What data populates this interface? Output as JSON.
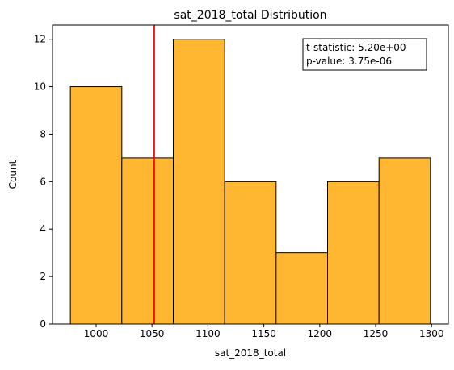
{
  "chart_data": {
    "type": "bar",
    "title": "sat_2018_total Distribution",
    "xlabel": "sat_2018_total",
    "ylabel": "Count",
    "bins": [
      {
        "start": 977,
        "end": 1023,
        "count": 10
      },
      {
        "start": 1023,
        "end": 1069,
        "count": 7
      },
      {
        "start": 1069,
        "end": 1115,
        "count": 12
      },
      {
        "start": 1115,
        "end": 1161,
        "count": 6
      },
      {
        "start": 1161,
        "end": 1207,
        "count": 3
      },
      {
        "start": 1207,
        "end": 1253,
        "count": 6
      },
      {
        "start": 1253,
        "end": 1299,
        "count": 7
      }
    ],
    "xlim": [
      961,
      1315
    ],
    "ylim": [
      0,
      12.6
    ],
    "xticks": [
      1000,
      1050,
      1100,
      1150,
      1200,
      1250,
      1300
    ],
    "yticks": [
      0,
      2,
      4,
      6,
      8,
      10,
      12
    ],
    "reference_line": {
      "x": 1052,
      "color": "#ff0000"
    },
    "annotation": {
      "line1": "t-statistic:  5.20e+00",
      "line2": "p-value:  3.75e-06"
    },
    "bar_color": "#ffb732",
    "bar_edge_color": "#000000",
    "grid": false,
    "legend": "none"
  }
}
